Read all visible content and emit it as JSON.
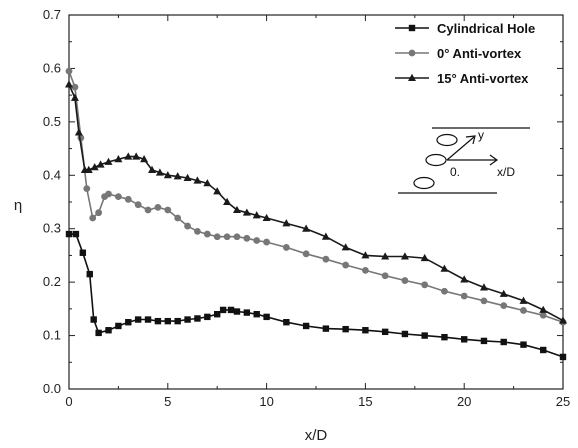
{
  "chart_data": {
    "type": "line",
    "title": "",
    "xlabel": "x/D",
    "ylabel": "η",
    "xlim": [
      0,
      25
    ],
    "ylim": [
      0.0,
      0.7
    ],
    "xticks": [
      0,
      5,
      10,
      15,
      20,
      25
    ],
    "yticks": [
      0.0,
      0.1,
      0.2,
      0.3,
      0.4,
      0.5,
      0.6,
      0.7
    ],
    "grid": false,
    "legend_position": "top-right",
    "series": [
      {
        "name": "Cylindrical Hole",
        "marker": "square",
        "color": "#111111",
        "x": [
          0,
          0.35,
          0.7,
          1.05,
          1.25,
          1.5,
          2.0,
          2.5,
          3.0,
          3.5,
          4.0,
          4.5,
          5.0,
          5.5,
          6.0,
          6.5,
          7.0,
          7.5,
          7.8,
          8.2,
          8.5,
          9.0,
          9.5,
          10.0,
          11,
          12,
          13,
          14,
          15,
          16,
          17,
          18,
          19,
          20,
          21,
          22,
          23,
          24,
          25
        ],
        "y": [
          0.29,
          0.29,
          0.255,
          0.215,
          0.13,
          0.105,
          0.11,
          0.118,
          0.125,
          0.13,
          0.13,
          0.127,
          0.127,
          0.127,
          0.13,
          0.132,
          0.135,
          0.14,
          0.148,
          0.148,
          0.145,
          0.143,
          0.14,
          0.135,
          0.125,
          0.118,
          0.113,
          0.112,
          0.11,
          0.107,
          0.103,
          0.1,
          0.097,
          0.093,
          0.09,
          0.088,
          0.083,
          0.073,
          0.06
        ]
      },
      {
        "name": "0° Anti-vortex",
        "marker": "circle",
        "color": "#777777",
        "x": [
          0,
          0.3,
          0.6,
          0.9,
          1.2,
          1.5,
          1.8,
          2.0,
          2.5,
          3.0,
          3.5,
          4.0,
          4.5,
          5.0,
          5.5,
          6.0,
          6.5,
          7.0,
          7.5,
          8.0,
          8.5,
          9.0,
          9.5,
          10,
          11,
          12,
          13,
          14,
          15,
          16,
          17,
          18,
          19,
          20,
          21,
          22,
          23,
          24,
          25
        ],
        "y": [
          0.595,
          0.565,
          0.47,
          0.375,
          0.32,
          0.33,
          0.36,
          0.365,
          0.36,
          0.355,
          0.345,
          0.335,
          0.34,
          0.335,
          0.32,
          0.305,
          0.295,
          0.29,
          0.285,
          0.285,
          0.285,
          0.282,
          0.278,
          0.275,
          0.265,
          0.253,
          0.243,
          0.232,
          0.222,
          0.212,
          0.203,
          0.195,
          0.183,
          0.174,
          0.165,
          0.156,
          0.147,
          0.138,
          0.125
        ]
      },
      {
        "name": "15° Anti-vortex",
        "marker": "triangle",
        "color": "#1a1a1a",
        "x": [
          0,
          0.3,
          0.5,
          0.8,
          1.0,
          1.3,
          1.6,
          2.0,
          2.5,
          3.0,
          3.4,
          3.8,
          4.2,
          4.6,
          5.0,
          5.5,
          6.0,
          6.5,
          7.0,
          7.5,
          8.0,
          8.5,
          9.0,
          9.5,
          10,
          11,
          12,
          13,
          14,
          15,
          16,
          17,
          18,
          19,
          20,
          21,
          22,
          23,
          24,
          25
        ],
        "y": [
          0.57,
          0.545,
          0.48,
          0.41,
          0.41,
          0.415,
          0.42,
          0.425,
          0.43,
          0.435,
          0.435,
          0.43,
          0.41,
          0.405,
          0.4,
          0.398,
          0.395,
          0.39,
          0.385,
          0.37,
          0.35,
          0.335,
          0.33,
          0.325,
          0.32,
          0.31,
          0.3,
          0.285,
          0.265,
          0.25,
          0.248,
          0.248,
          0.245,
          0.225,
          0.205,
          0.19,
          0.178,
          0.165,
          0.148,
          0.128
        ]
      }
    ],
    "inset": {
      "labels": [
        "y",
        "0.",
        "x/D"
      ]
    }
  }
}
